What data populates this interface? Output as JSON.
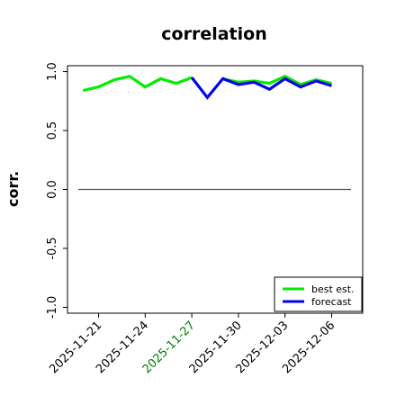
{
  "chart_data": {
    "type": "line",
    "title": "correlation",
    "xlabel": "",
    "ylabel": "corr.",
    "ylim": [
      -1.05,
      1.05
    ],
    "xlim": [
      "2025-11-19",
      "2025-12-08"
    ],
    "x": [
      "2025-11-20",
      "2025-11-21",
      "2025-11-22",
      "2025-11-23",
      "2025-11-24",
      "2025-11-25",
      "2025-11-26",
      "2025-11-27",
      "2025-11-28",
      "2025-11-29",
      "2025-11-30",
      "2025-12-01",
      "2025-12-02",
      "2025-12-03",
      "2025-12-04",
      "2025-12-05",
      "2025-12-06"
    ],
    "series": [
      {
        "name": "best est.",
        "color": "#00ee00",
        "values": [
          0.84,
          0.87,
          0.93,
          0.96,
          0.87,
          0.94,
          0.9,
          0.95,
          null,
          0.94,
          0.91,
          0.92,
          0.9,
          0.96,
          0.89,
          0.93,
          0.9
        ]
      },
      {
        "name": "forecast",
        "color": "#0000ee",
        "values": [
          null,
          null,
          null,
          null,
          null,
          null,
          null,
          0.95,
          0.78,
          0.94,
          0.89,
          0.91,
          0.85,
          0.94,
          0.87,
          0.92,
          0.88
        ]
      }
    ],
    "hline": 0.0,
    "yticks": [
      -1.0,
      -0.5,
      0.0,
      0.5,
      1.0
    ],
    "ytick_labels": [
      "-1.0",
      "-0.5",
      "0.0",
      "0.5",
      "1.0"
    ],
    "xticks": [
      "2025-11-21",
      "2025-11-24",
      "2025-11-27",
      "2025-11-30",
      "2025-12-03",
      "2025-12-06"
    ],
    "xtick_labels": [
      "2025-11-21",
      "2025-11-24",
      "2025-11-27",
      "2025-11-30",
      "2025-12-03",
      "2025-12-06"
    ],
    "xtick_colors": [
      "#000000",
      "#000000",
      "#008000",
      "#000000",
      "#000000",
      "#000000"
    ],
    "legend_position": "lower-right",
    "grid": false
  }
}
